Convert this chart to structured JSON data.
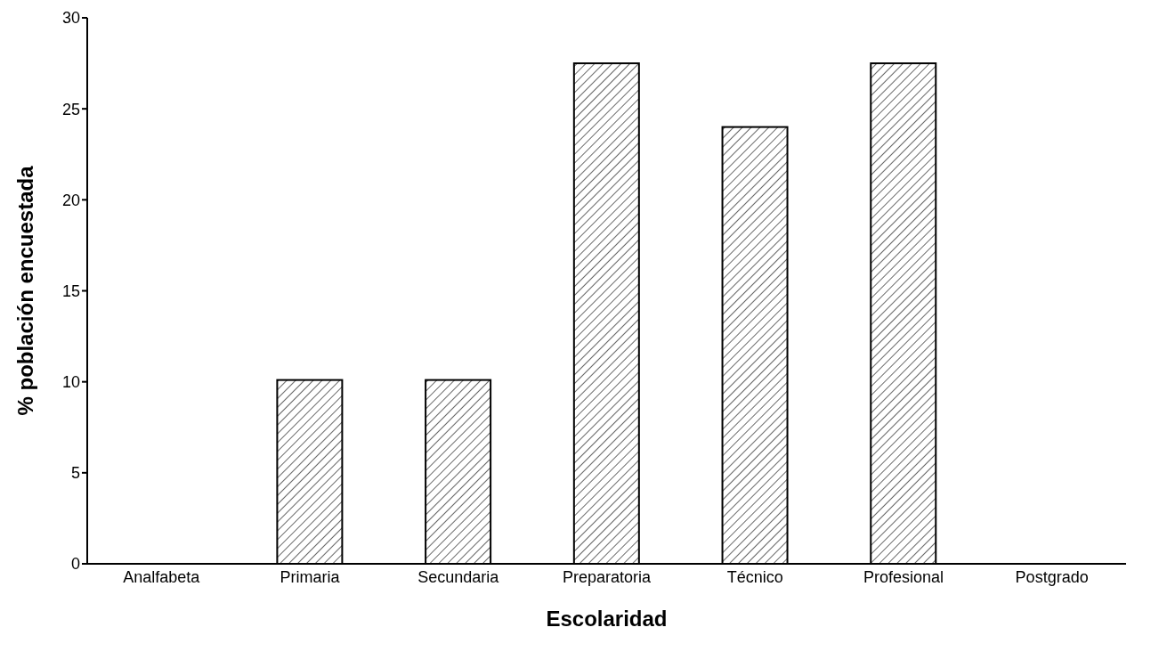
{
  "chart_data": {
    "type": "bar",
    "xlabel": "Escolaridad",
    "ylabel": "% población encuestada",
    "categories": [
      "Analfabeta",
      "Primaria",
      "Secundaria",
      "Preparatoria",
      "Técnico",
      "Profesional",
      "Postgrado"
    ],
    "values": [
      0,
      10.1,
      10.1,
      27.5,
      24.0,
      27.5,
      0
    ],
    "color": "#000000",
    "ylim": [
      0,
      30
    ],
    "yticks": [
      0,
      5,
      10,
      15,
      20,
      25,
      30
    ],
    "grid": false,
    "legend": false
  }
}
